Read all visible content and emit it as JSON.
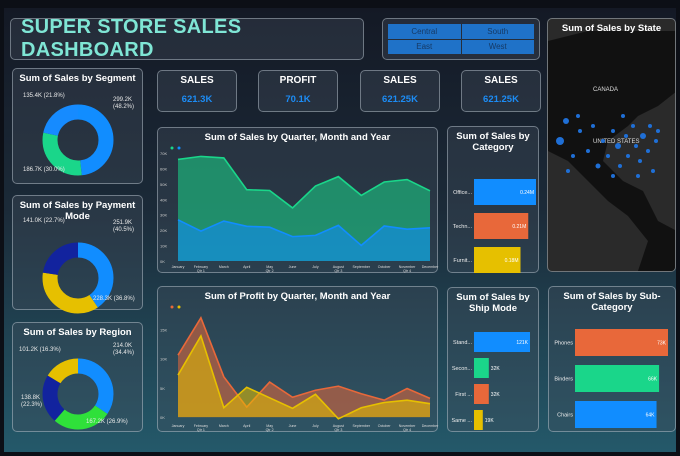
{
  "header": {
    "title": "SUPER STORE SALES DASHBOARD"
  },
  "region_slicer": {
    "options": [
      "Central",
      "South",
      "East",
      "West"
    ]
  },
  "kpis": [
    {
      "label": "SALES",
      "value": "621.3K"
    },
    {
      "label": "PROFIT",
      "value": "70.1K"
    },
    {
      "label": "SALES",
      "value": "621.25K"
    },
    {
      "label": "SALES",
      "value": "621.25K"
    }
  ],
  "colors": {
    "blue": "#118dff",
    "green": "#1ad68a",
    "yellow": "#e6c000",
    "navy": "#12239e",
    "orange": "#e8683a",
    "lime": "#2fe03a",
    "title": "#7fe6d5"
  },
  "segment": {
    "title": "Sum of Sales by Segment",
    "slices": [
      {
        "label": "299.2K (48.2%)",
        "value": 48.2,
        "color": "#118dff"
      },
      {
        "label": "186.7K (30.0%)",
        "value": 30.0,
        "color": "#1ad68a"
      },
      {
        "label": "135.4K (21.8%)",
        "value": 21.8,
        "color": "#168bff"
      }
    ]
  },
  "payment": {
    "title": "Sum of Sales by Payment Mode",
    "slices": [
      {
        "label": "251.9K (40.5%)",
        "value": 40.5,
        "color": "#118dff"
      },
      {
        "label": "228.3K (36.8%)",
        "value": 36.8,
        "color": "#e6c000"
      },
      {
        "label": "141.0K (22.7%)",
        "value": 22.7,
        "color": "#12239e"
      }
    ]
  },
  "region": {
    "title": "Sum of Sales by Region",
    "slices": [
      {
        "label": "214.0K (34.4%)",
        "value": 34.4,
        "color": "#118dff"
      },
      {
        "label": "167.2K (26.9%)",
        "value": 26.9,
        "color": "#2fe03a"
      },
      {
        "label": "138.8K (22.3%)",
        "value": 22.3,
        "color": "#12239e"
      },
      {
        "label": "101.2K (16.3%)",
        "value": 16.3,
        "color": "#e6c000"
      }
    ]
  },
  "map": {
    "title": "Sum of Sales by State",
    "labels": [
      "CANADA",
      "UNITED STATES"
    ]
  },
  "chart_data": [
    {
      "type": "area",
      "title": "Sum of Sales by Quarter, Month and Year",
      "categories": [
        "January",
        "February",
        "March",
        "April",
        "May",
        "June",
        "July",
        "August",
        "September",
        "October",
        "November",
        "December"
      ],
      "quarters": {
        "February": "Qtr 1",
        "May": "Qtr 2",
        "August": "Qtr 3",
        "November": "Qtr 4"
      },
      "yticks": [
        "0K",
        "10K",
        "20K",
        "30K",
        "40K",
        "50K",
        "60K",
        "70K"
      ],
      "ylim": [
        0,
        70000
      ],
      "series": [
        {
          "color": "#1ad68a",
          "values": [
            65800,
            67800,
            66800,
            46200,
            45700,
            34400,
            48600,
            54700,
            42500,
            51200,
            52800,
            45500
          ]
        },
        {
          "color": "#118dff",
          "values": [
            26700,
            19400,
            25900,
            22500,
            21900,
            15800,
            16600,
            23100,
            10100,
            22700,
            20600,
            21500
          ]
        }
      ]
    },
    {
      "type": "area",
      "title": "Sum of Profit by Quarter, Month and Year",
      "categories": [
        "January",
        "February",
        "March",
        "April",
        "May",
        "June",
        "July",
        "August",
        "September",
        "October",
        "November",
        "December"
      ],
      "quarters": {
        "February": "Qtr 1",
        "May": "Qtr 2",
        "August": "Qtr 3",
        "November": "Qtr 4"
      },
      "yticks": [
        "0K",
        "5K",
        "10K",
        "15K"
      ],
      "ylim": [
        -500,
        18000
      ],
      "series": [
        {
          "color": "#e8683a",
          "values": [
            10600,
            17000,
            6900,
            1700,
            6000,
            3400,
            4600,
            5300,
            4000,
            2900,
            4900,
            3200
          ]
        },
        {
          "color": "#e6c000",
          "values": [
            7200,
            13900,
            1600,
            5100,
            3300,
            1500,
            3900,
            -300,
            1600,
            2500,
            2900,
            2300
          ]
        }
      ]
    },
    {
      "type": "bar",
      "title": "Sum of Sales by Category",
      "categories": [
        "Office...",
        "Techn...",
        "Furnit..."
      ],
      "values": [
        0.24,
        0.21,
        0.18
      ],
      "labels": [
        "0.24M",
        "0.21M",
        "0.18M"
      ],
      "colors": [
        "#118dff",
        "#e8683a",
        "#e6c000"
      ]
    },
    {
      "type": "bar",
      "title": "Sum of Sales by Ship Mode",
      "categories": [
        "Stand...",
        "Secon...",
        "First ...",
        "Same ..."
      ],
      "values": [
        121,
        32,
        32,
        19
      ],
      "labels": [
        "121K",
        "32K",
        "32K",
        "19K"
      ],
      "colors": [
        "#118dff",
        "#1ad68a",
        "#e8683a",
        "#e6c000"
      ]
    },
    {
      "type": "bar",
      "title": "Sum of Sales by Sub-Category",
      "categories": [
        "Phones",
        "Binders",
        "Chairs"
      ],
      "values": [
        73,
        66,
        64
      ],
      "labels": [
        "73K",
        "66K",
        "64K"
      ],
      "colors": [
        "#e8683a",
        "#1ad68a",
        "#118dff"
      ]
    }
  ]
}
